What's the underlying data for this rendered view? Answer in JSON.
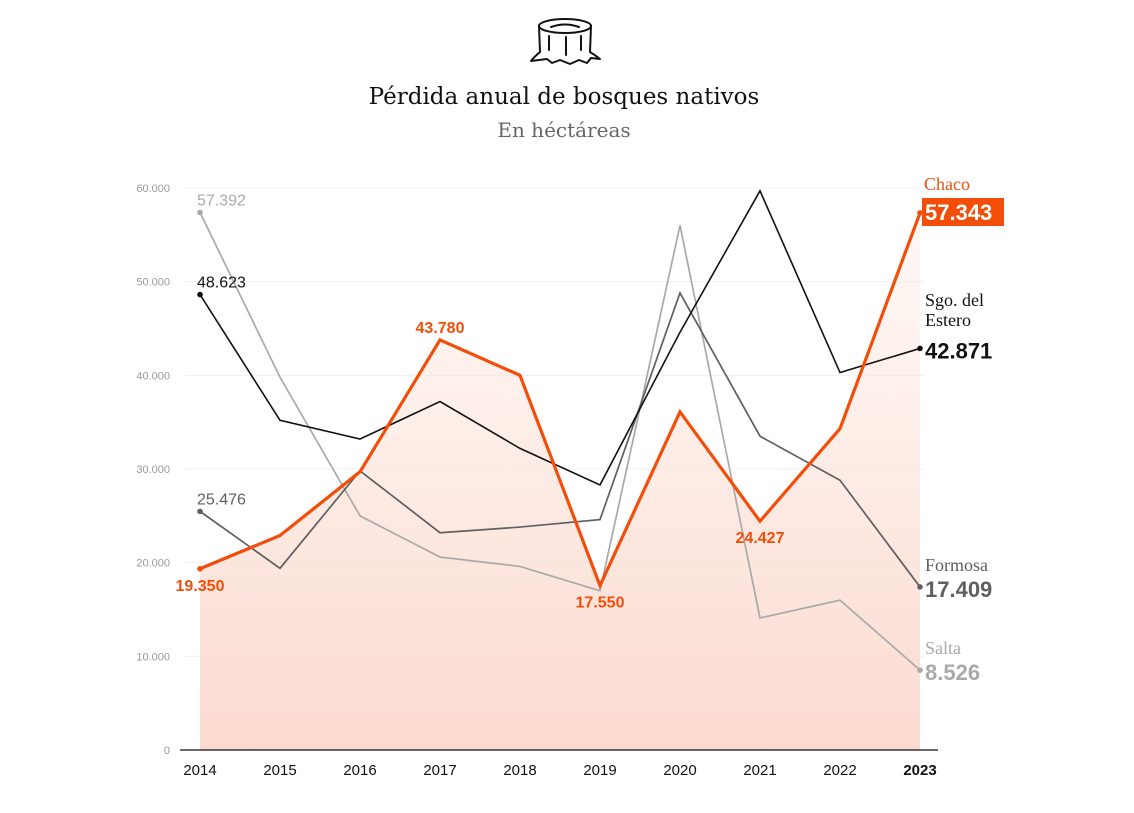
{
  "header": {
    "icon": "tree-stump-icon",
    "title": "Pérdida anual de bosques nativos",
    "subtitle": "En héctáreas"
  },
  "colors": {
    "chaco": "#f24e0a",
    "santiago": "#111111",
    "formosa": "#5f5f5f",
    "salta": "#a9a9a9"
  },
  "chart_data": {
    "type": "line",
    "title": "Pérdida anual de bosques nativos",
    "subtitle": "En héctáreas",
    "categories": [
      "2014",
      "2015",
      "2016",
      "2017",
      "2018",
      "2019",
      "2020",
      "2021",
      "2022",
      "2023"
    ],
    "highlight_category": "2023",
    "ylim": [
      0,
      60000
    ],
    "yticks": [
      0,
      10000,
      20000,
      30000,
      40000,
      50000,
      60000
    ],
    "ytick_labels": [
      "0",
      "10.000",
      "20.000",
      "30.000",
      "40.000",
      "50.000",
      "60.000"
    ],
    "grid": true,
    "series": [
      {
        "name": "Salta",
        "values": [
          57392,
          39800,
          25000,
          20600,
          19600,
          17000,
          56000,
          14100,
          16000,
          8526
        ],
        "start_label": "57.392",
        "end_label": "8.526",
        "data_labels": []
      },
      {
        "name": "Formosa",
        "values": [
          25476,
          19400,
          29800,
          23200,
          23800,
          24600,
          48800,
          33500,
          28800,
          17409
        ],
        "start_label": "25.476",
        "end_label": "17.409",
        "data_labels": []
      },
      {
        "name": "Sgo. del Estero",
        "values": [
          48623,
          35200,
          33200,
          37200,
          32200,
          28300,
          44600,
          59700,
          40300,
          42871
        ],
        "start_label": "48.623",
        "end_label": "42.871",
        "data_labels": []
      },
      {
        "name": "Chaco",
        "values": [
          19350,
          22900,
          29700,
          43780,
          40000,
          17550,
          36100,
          24427,
          34300,
          57343
        ],
        "start_label": "",
        "end_label": "57.343",
        "data_labels": [
          {
            "index": 0,
            "text": "19.350"
          },
          {
            "index": 3,
            "text": "43.780"
          },
          {
            "index": 5,
            "text": "17.550"
          },
          {
            "index": 7,
            "text": "24.427"
          }
        ]
      }
    ]
  }
}
